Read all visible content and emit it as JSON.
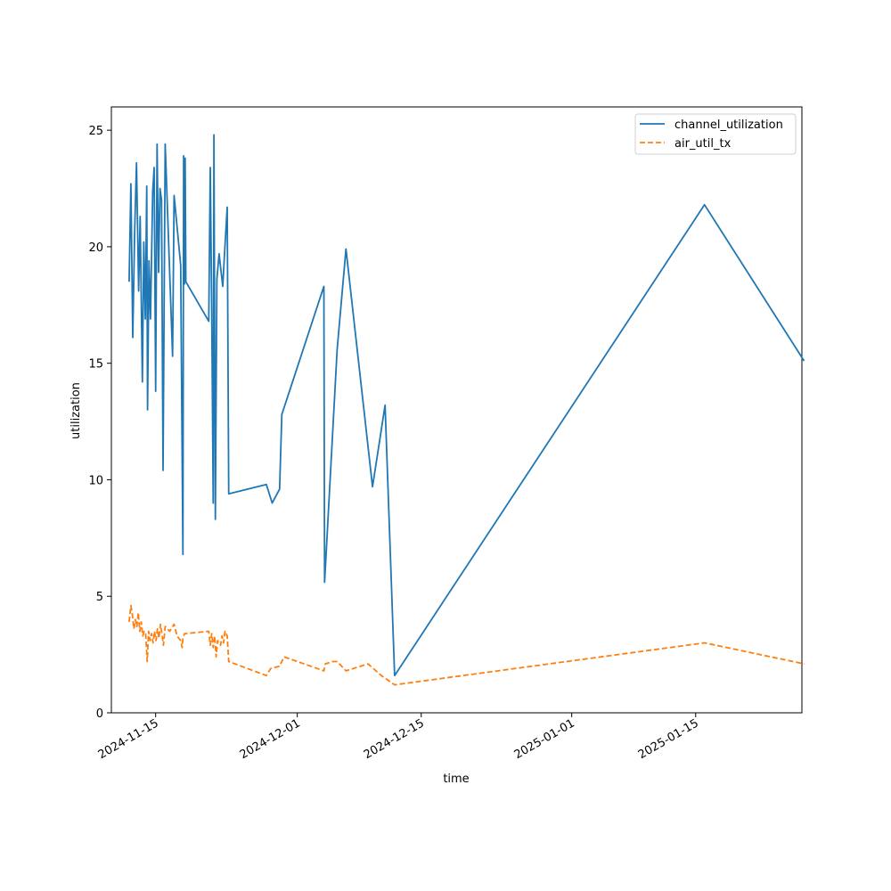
{
  "chart_data": {
    "type": "line",
    "title": "",
    "xlabel": "time",
    "ylabel": "utilization",
    "x_axis_type": "date",
    "xlim": [
      "2024-11-10",
      "2025-01-27"
    ],
    "ylim": [
      0,
      26
    ],
    "x_ticks": [
      "2024-11-15",
      "2024-12-01",
      "2024-12-15",
      "2025-01-01",
      "2025-01-15"
    ],
    "y_ticks": [
      0,
      5,
      10,
      15,
      20,
      25
    ],
    "grid": false,
    "legend_position": "top-right",
    "series": [
      {
        "name": "channel_utilization",
        "color": "#1f77b4",
        "line_style": "solid",
        "points": [
          [
            "2024-11-12T00:00",
            18.5
          ],
          [
            "2024-11-12T05:00",
            22.7
          ],
          [
            "2024-11-12T10:00",
            16.1
          ],
          [
            "2024-11-12T15:00",
            20.6
          ],
          [
            "2024-11-12T20:00",
            23.6
          ],
          [
            "2024-11-13T02:00",
            18.1
          ],
          [
            "2024-11-13T06:00",
            21.3
          ],
          [
            "2024-11-13T12:00",
            14.2
          ],
          [
            "2024-11-13T16:00",
            20.2
          ],
          [
            "2024-11-13T20:00",
            16.9
          ],
          [
            "2024-11-14T00:00",
            22.6
          ],
          [
            "2024-11-14T02:00",
            13.0
          ],
          [
            "2024-11-14T06:00",
            19.4
          ],
          [
            "2024-11-14T10:00",
            16.9
          ],
          [
            "2024-11-14T16:00",
            22.4
          ],
          [
            "2024-11-14T20:00",
            23.4
          ],
          [
            "2024-11-15T00:00",
            13.8
          ],
          [
            "2024-11-15T04:00",
            24.4
          ],
          [
            "2024-11-15T08:00",
            18.9
          ],
          [
            "2024-11-15T12:00",
            22.5
          ],
          [
            "2024-11-15T16:00",
            22.0
          ],
          [
            "2024-11-15T20:00",
            10.4
          ],
          [
            "2024-11-16T02:00",
            24.4
          ],
          [
            "2024-11-16T22:00",
            15.3
          ],
          [
            "2024-11-17T02:00",
            22.2
          ],
          [
            "2024-11-17T20:00",
            19.2
          ],
          [
            "2024-11-18T02:00",
            6.8
          ],
          [
            "2024-11-18T04:00",
            23.9
          ],
          [
            "2024-11-18T06:00",
            18.4
          ],
          [
            "2024-11-18T08:00",
            23.8
          ],
          [
            "2024-11-18T10:00",
            18.5
          ],
          [
            "2024-11-21T00:00",
            16.8
          ],
          [
            "2024-11-21T04:00",
            23.4
          ],
          [
            "2024-11-21T08:00",
            17.4
          ],
          [
            "2024-11-21T12:00",
            9.0
          ],
          [
            "2024-11-21T14:00",
            24.8
          ],
          [
            "2024-11-21T18:00",
            8.3
          ],
          [
            "2024-11-21T22:00",
            18.6
          ],
          [
            "2024-11-22T04:00",
            19.7
          ],
          [
            "2024-11-22T14:00",
            18.3
          ],
          [
            "2024-11-22T18:00",
            19.5
          ],
          [
            "2024-11-23T02:00",
            21.7
          ],
          [
            "2024-11-23T06:00",
            9.4
          ],
          [
            "2024-11-27T12:00",
            9.8
          ],
          [
            "2024-11-28T04:00",
            9.0
          ],
          [
            "2024-11-29T00:00",
            9.6
          ],
          [
            "2024-11-29T06:00",
            12.8
          ],
          [
            "2024-12-04T00:00",
            18.3
          ],
          [
            "2024-12-04T02:00",
            5.6
          ],
          [
            "2024-12-05T12:00",
            15.6
          ],
          [
            "2024-12-06T12:00",
            19.9
          ],
          [
            "2024-12-09T12:00",
            9.7
          ],
          [
            "2024-12-10T22:00",
            13.2
          ],
          [
            "2024-12-12T00:00",
            1.6
          ],
          [
            "2025-01-16T00:00",
            21.8
          ],
          [
            "2025-01-27T06:00",
            15.1
          ]
        ]
      },
      {
        "name": "air_util_tx",
        "color": "#ff7f0e",
        "line_style": "dashed",
        "points": [
          [
            "2024-11-12T00:00",
            3.9
          ],
          [
            "2024-11-12T05:00",
            4.6
          ],
          [
            "2024-11-12T09:00",
            4.2
          ],
          [
            "2024-11-12T13:00",
            3.6
          ],
          [
            "2024-11-12T17:00",
            4.0
          ],
          [
            "2024-11-12T21:00",
            3.7
          ],
          [
            "2024-11-13T01:00",
            4.3
          ],
          [
            "2024-11-13T05:00",
            3.5
          ],
          [
            "2024-11-13T09:00",
            3.9
          ],
          [
            "2024-11-13T13:00",
            3.3
          ],
          [
            "2024-11-13T17:00",
            3.5
          ],
          [
            "2024-11-13T21:00",
            3.4
          ],
          [
            "2024-11-14T01:00",
            2.2
          ],
          [
            "2024-11-14T05:00",
            3.5
          ],
          [
            "2024-11-14T09:00",
            3.1
          ],
          [
            "2024-11-14T13:00",
            3.4
          ],
          [
            "2024-11-14T17:00",
            3.0
          ],
          [
            "2024-11-14T21:00",
            3.5
          ],
          [
            "2024-11-15T01:00",
            3.1
          ],
          [
            "2024-11-15T05:00",
            3.6
          ],
          [
            "2024-11-15T09:00",
            3.2
          ],
          [
            "2024-11-15T13:00",
            3.8
          ],
          [
            "2024-11-15T17:00",
            3.4
          ],
          [
            "2024-11-15T21:00",
            2.9
          ],
          [
            "2024-11-16T02:00",
            3.7
          ],
          [
            "2024-11-16T14:00",
            3.5
          ],
          [
            "2024-11-17T02:00",
            3.8
          ],
          [
            "2024-11-17T10:00",
            3.3
          ],
          [
            "2024-11-17T20:00",
            3.1
          ],
          [
            "2024-11-18T00:00",
            2.8
          ],
          [
            "2024-11-18T02:00",
            3.2
          ],
          [
            "2024-11-18T06:00",
            3.4
          ],
          [
            "2024-11-18T10:00",
            3.4
          ],
          [
            "2024-11-21T00:00",
            3.5
          ],
          [
            "2024-11-21T04:00",
            2.9
          ],
          [
            "2024-11-21T08:00",
            3.4
          ],
          [
            "2024-11-21T12:00",
            2.8
          ],
          [
            "2024-11-21T16:00",
            3.3
          ],
          [
            "2024-11-21T20:00",
            2.4
          ],
          [
            "2024-11-22T00:00",
            3.1
          ],
          [
            "2024-11-22T08:00",
            2.9
          ],
          [
            "2024-11-22T12:00",
            3.3
          ],
          [
            "2024-11-22T16:00",
            3.0
          ],
          [
            "2024-11-22T20:00",
            3.5
          ],
          [
            "2024-11-23T02:00",
            3.3
          ],
          [
            "2024-11-23T06:00",
            2.2
          ],
          [
            "2024-11-27T12:00",
            1.6
          ],
          [
            "2024-11-28T00:00",
            1.9
          ],
          [
            "2024-11-29T00:00",
            2.0
          ],
          [
            "2024-11-29T12:00",
            2.4
          ],
          [
            "2024-12-04T00:00",
            1.8
          ],
          [
            "2024-12-04T04:00",
            2.1
          ],
          [
            "2024-12-05T00:00",
            2.2
          ],
          [
            "2024-12-05T12:00",
            2.2
          ],
          [
            "2024-12-06T12:00",
            1.8
          ],
          [
            "2024-12-09T00:00",
            2.1
          ],
          [
            "2024-12-10T12:00",
            1.6
          ],
          [
            "2024-12-12T00:00",
            1.2
          ],
          [
            "2025-01-16T00:00",
            3.0
          ],
          [
            "2025-01-27T06:00",
            2.1
          ]
        ]
      }
    ]
  }
}
